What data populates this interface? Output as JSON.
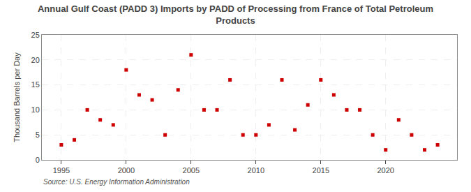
{
  "chart_data": {
    "type": "scatter",
    "title": "Annual Gulf Coast (PADD 3) Imports by PADD of Processing from France of Total Petroleum\nProducts",
    "ylabel": "Thousand Barrels per Day",
    "annotations": [
      "Source: U.S. Energy Information Administration"
    ],
    "x": [
      1995,
      1996,
      1997,
      1998,
      1999,
      2000,
      2001,
      2002,
      2003,
      2004,
      2005,
      2006,
      2007,
      2008,
      2009,
      2010,
      2011,
      2012,
      2013,
      2014,
      2015,
      2016,
      2017,
      2018,
      2019,
      2020,
      2021,
      2022,
      2023,
      2024
    ],
    "values": [
      3,
      4,
      10,
      8,
      7,
      18,
      13,
      12,
      5,
      14,
      21,
      10,
      10,
      16,
      5,
      5,
      7,
      16,
      6,
      11,
      16,
      13,
      10,
      10,
      5,
      2,
      8,
      5,
      2,
      3
    ],
    "color": "#cc0000",
    "marker": "square",
    "xlim": [
      1993.5,
      2025.5
    ],
    "ylim": [
      0,
      25
    ],
    "xticks": [
      1995,
      2000,
      2005,
      2010,
      2015,
      2020
    ],
    "yticks": [
      0,
      5,
      10,
      15,
      20,
      25
    ],
    "grid": true
  }
}
